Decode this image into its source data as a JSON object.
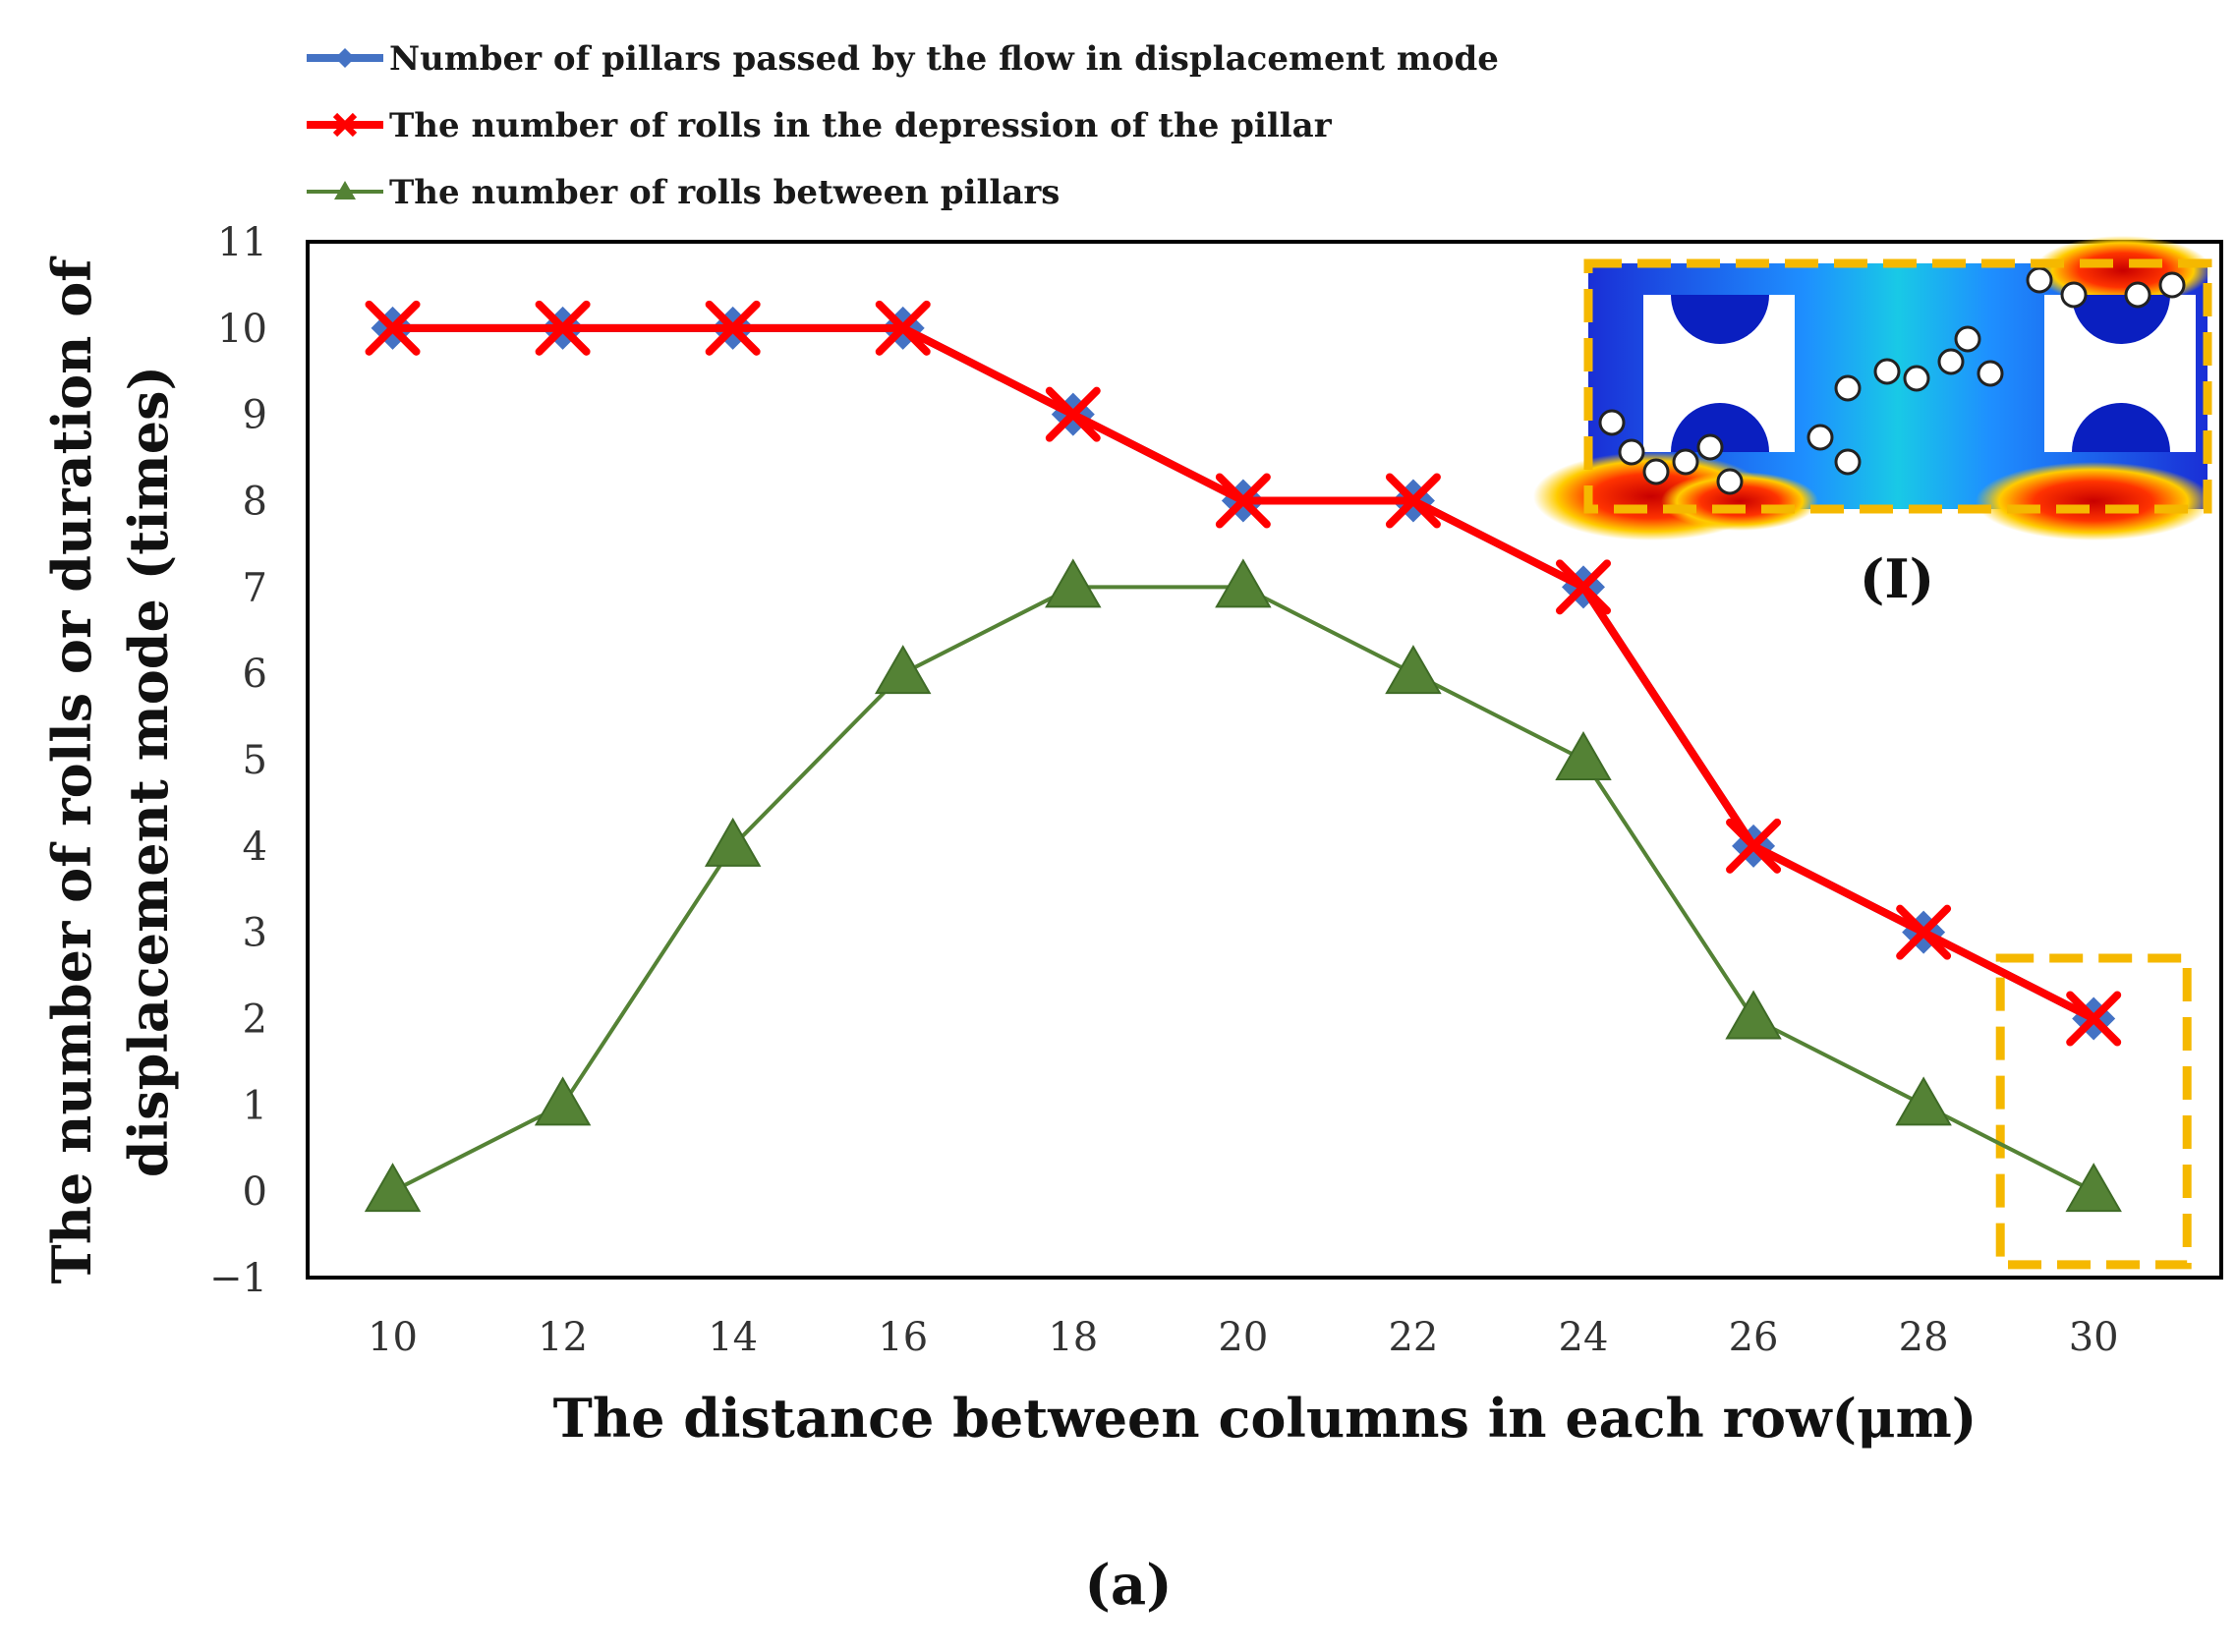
{
  "chart_data": {
    "type": "line",
    "x": [
      10,
      12,
      14,
      16,
      18,
      20,
      22,
      24,
      26,
      28,
      30
    ],
    "series": [
      {
        "name": "Number of pillars passed by the flow in displacement mode",
        "values": [
          10,
          10,
          10,
          10,
          9,
          8,
          8,
          7,
          4,
          3,
          2
        ],
        "color": "#4472c4",
        "marker": "diamond"
      },
      {
        "name": "The number of rolls in the depression of the pillar",
        "values": [
          10,
          10,
          10,
          10,
          9,
          8,
          8,
          7,
          4,
          3,
          2
        ],
        "color": "#ff0000",
        "marker": "x"
      },
      {
        "name": "The number of rolls between pillars",
        "values": [
          0,
          1,
          4,
          6,
          7,
          7,
          6,
          5,
          2,
          1,
          0
        ],
        "color": "#548235",
        "marker": "triangle"
      }
    ],
    "xlabel": "The distance between columns in each row(μm)",
    "ylabel_line1": "The number of rolls or duration of",
    "ylabel_line2": "displacement mode (times)",
    "xlim": [
      9,
      31.5
    ],
    "ylim": [
      -1,
      11
    ],
    "xticks": [
      "10",
      "12",
      "14",
      "16",
      "18",
      "20",
      "22",
      "24",
      "26",
      "28",
      "30"
    ],
    "yticks": [
      "−1",
      "0",
      "1",
      "2",
      "3",
      "4",
      "5",
      "6",
      "7",
      "8",
      "9",
      "10",
      "11"
    ],
    "legend_position": "top-left",
    "grid": false,
    "inset_label": "(I)",
    "panel_label": "(a)",
    "highlight_color": "#f5b800"
  }
}
